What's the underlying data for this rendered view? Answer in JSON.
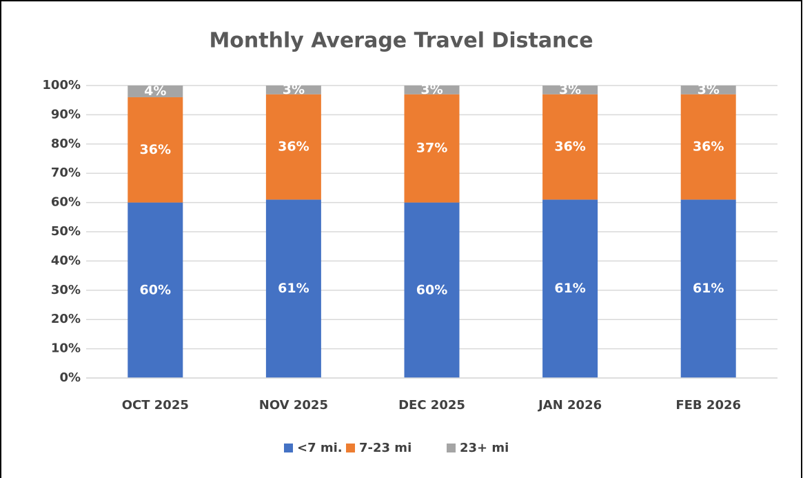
{
  "chart_data": {
    "type": "stacked_bar",
    "title": "Monthly Average Travel Distance",
    "categories": [
      "OCT 2025",
      "NOV 2025",
      "DEC 2025",
      "JAN 2026",
      "FEB 2026"
    ],
    "series": [
      {
        "name": "<7 mi.",
        "color": "#4472c4",
        "values": [
          60,
          61,
          60,
          61,
          61
        ],
        "value_labels": [
          "60%",
          "61%",
          "60%",
          "61%",
          "61%"
        ]
      },
      {
        "name": "7-23 mi",
        "color": "#ed7d31",
        "values": [
          36,
          36,
          37,
          36,
          36
        ],
        "value_labels": [
          "36%",
          "36%",
          "37%",
          "36%",
          "36%"
        ]
      },
      {
        "name": "23+ mi",
        "color": "#a5a5a5",
        "values": [
          4,
          3,
          3,
          3,
          3
        ],
        "value_labels": [
          "4%",
          "3%",
          "3%",
          "3%",
          "3%"
        ]
      }
    ],
    "ylim": [
      0,
      100
    ],
    "yticks": [
      {
        "value": 0,
        "label": "0%"
      },
      {
        "value": 10,
        "label": "10%"
      },
      {
        "value": 20,
        "label": "20%"
      },
      {
        "value": 30,
        "label": "30%"
      },
      {
        "value": 40,
        "label": "40%"
      },
      {
        "value": 50,
        "label": "50%"
      },
      {
        "value": 60,
        "label": "60%"
      },
      {
        "value": 70,
        "label": "70%"
      },
      {
        "value": 80,
        "label": "80%"
      },
      {
        "value": 90,
        "label": "90%"
      },
      {
        "value": 100,
        "label": "100%"
      }
    ],
    "grid": true,
    "legend": "bottom"
  }
}
